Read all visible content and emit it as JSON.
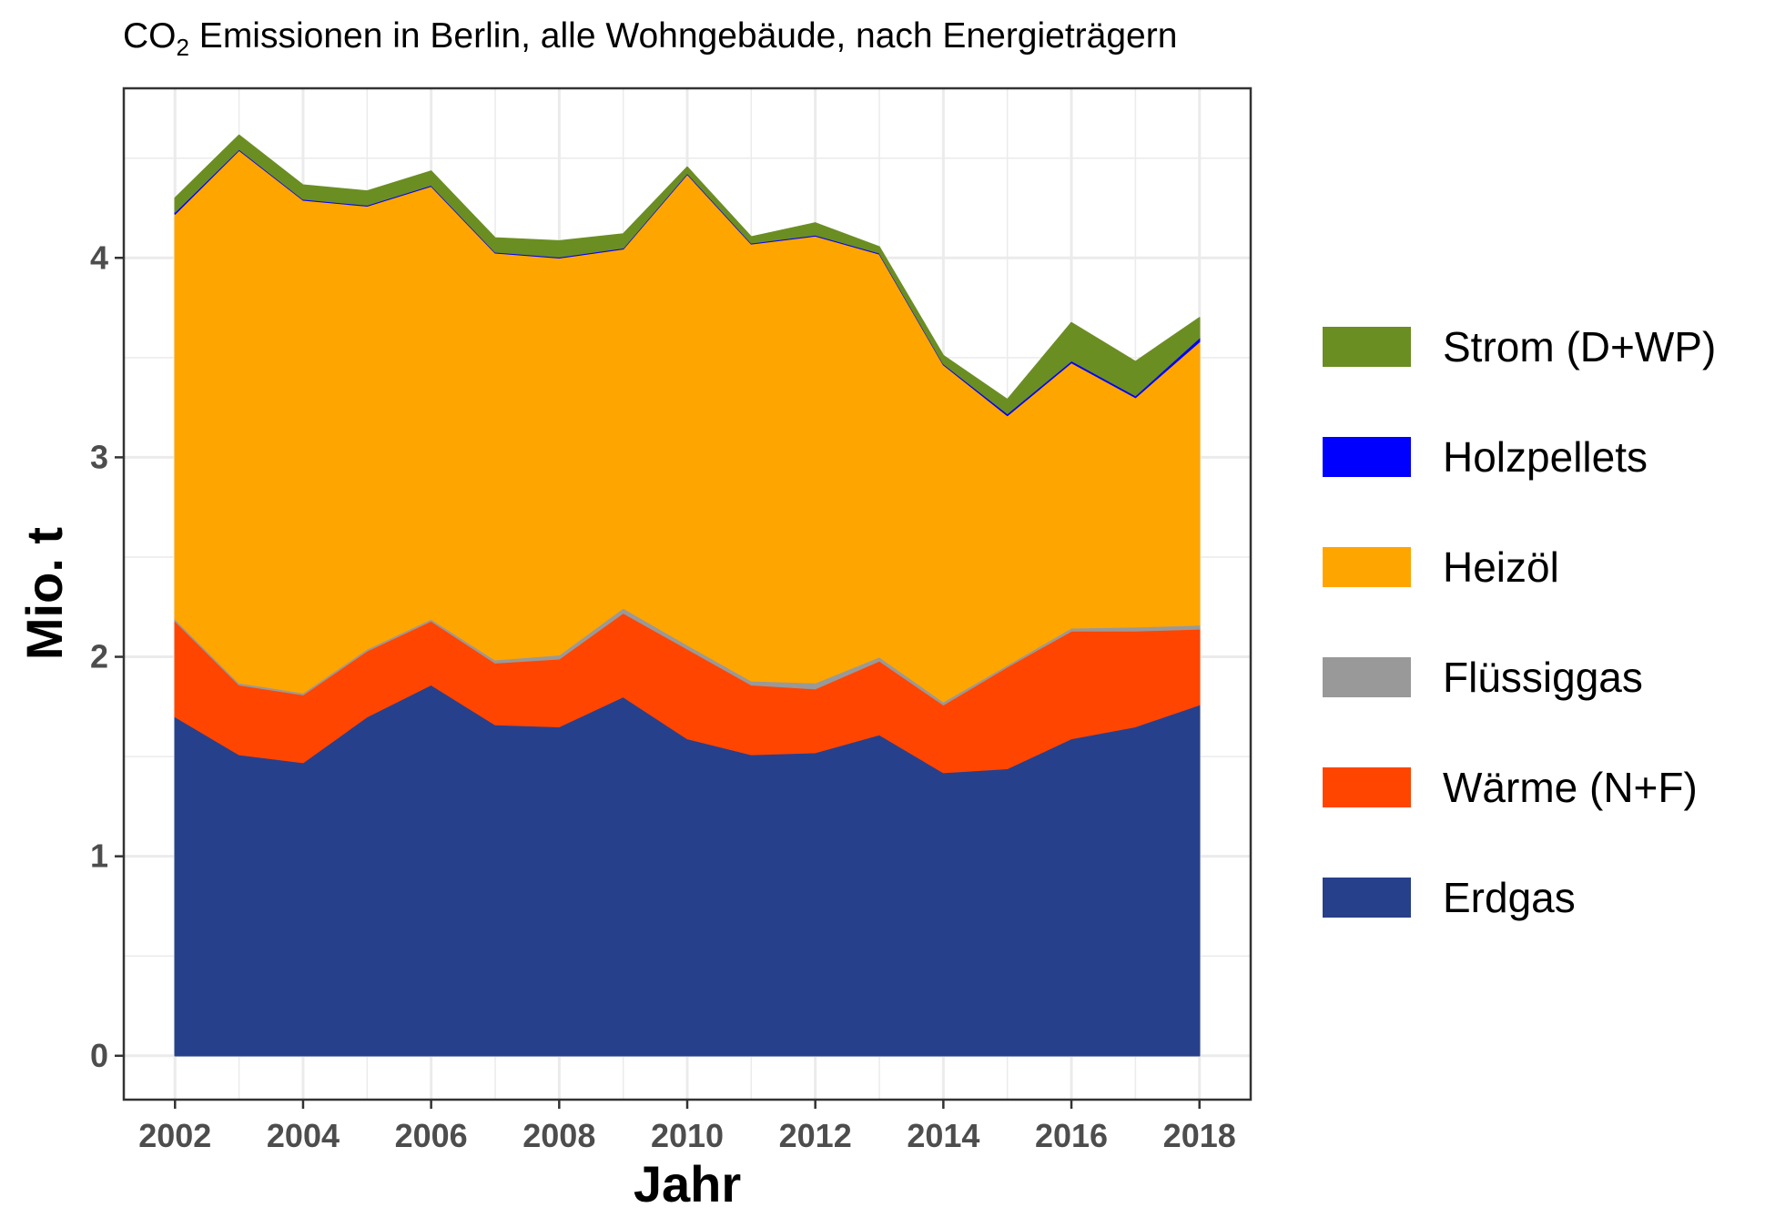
{
  "chart_data": {
    "type": "area",
    "stacked": true,
    "title": {
      "prefix": "CO",
      "subscript": "2",
      "rest": " Emissionen in Berlin, alle Wohngebäude, nach Energieträgern"
    },
    "xlabel": "Jahr",
    "ylabel": "Mio. t",
    "xlim": [
      2001.2,
      2018.8
    ],
    "ylim": [
      -0.22,
      4.85
    ],
    "x_ticks": [
      "2002",
      "2004",
      "2006",
      "2008",
      "2010",
      "2012",
      "2014",
      "2016",
      "2018"
    ],
    "y_ticks": [
      "0",
      "1",
      "2",
      "3",
      "4"
    ],
    "grid": true,
    "legend_position": "right",
    "x": [
      2002,
      2003,
      2004,
      2005,
      2006,
      2007,
      2008,
      2009,
      2010,
      2011,
      2012,
      2013,
      2014,
      2015,
      2016,
      2017,
      2018
    ],
    "series": [
      {
        "name": "Erdgas",
        "color": "#27408b",
        "values": [
          1.7,
          1.51,
          1.47,
          1.7,
          1.86,
          1.66,
          1.65,
          1.8,
          1.59,
          1.51,
          1.52,
          1.61,
          1.42,
          1.44,
          1.59,
          1.65,
          1.76
        ]
      },
      {
        "name": "Wärme (N+F)",
        "color": "#ff4500",
        "values": [
          0.48,
          0.35,
          0.34,
          0.33,
          0.32,
          0.31,
          0.34,
          0.42,
          0.45,
          0.35,
          0.32,
          0.37,
          0.34,
          0.51,
          0.54,
          0.48,
          0.38
        ]
      },
      {
        "name": "Flüssiggas",
        "color": "#999999",
        "values": [
          0.01,
          0.01,
          0.01,
          0.01,
          0.01,
          0.015,
          0.02,
          0.025,
          0.02,
          0.02,
          0.03,
          0.02,
          0.015,
          0.01,
          0.015,
          0.02,
          0.02
        ]
      },
      {
        "name": "Heizöl",
        "color": "#ffa500",
        "values": [
          2.03,
          2.67,
          2.47,
          2.22,
          2.17,
          2.04,
          1.99,
          1.8,
          2.36,
          2.19,
          2.24,
          2.02,
          1.69,
          1.25,
          1.33,
          1.15,
          1.42
        ]
      },
      {
        "name": "Holzpellets",
        "color": "#0000ff",
        "values": [
          0.01,
          0.005,
          0.005,
          0.005,
          0.005,
          0.005,
          0.005,
          0.005,
          0.005,
          0.005,
          0.005,
          0.005,
          0.005,
          0.01,
          0.01,
          0.01,
          0.02
        ]
      },
      {
        "name": "Strom (D+WP)",
        "color": "#6b8e23",
        "values": [
          0.07,
          0.07,
          0.07,
          0.07,
          0.07,
          0.07,
          0.08,
          0.07,
          0.03,
          0.03,
          0.06,
          0.03,
          0.04,
          0.07,
          0.19,
          0.17,
          0.1
        ]
      }
    ],
    "legend_order": [
      "Strom (D+WP)",
      "Holzpellets",
      "Heizöl",
      "Flüssiggas",
      "Wärme (N+F)",
      "Erdgas"
    ]
  }
}
